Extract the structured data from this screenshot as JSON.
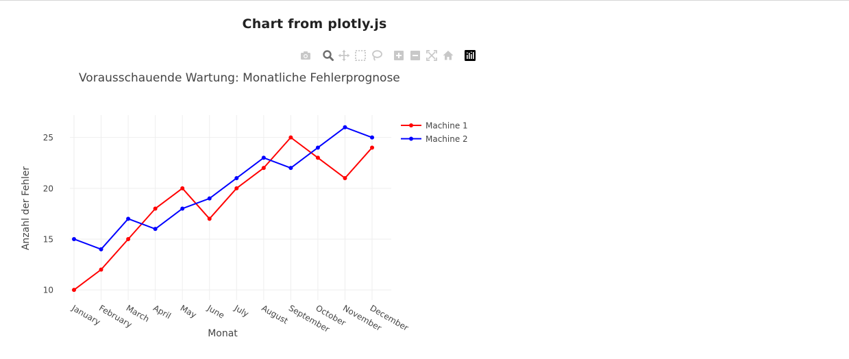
{
  "page": {
    "title": "Chart from plotly.js"
  },
  "modebar": {
    "buttons": [
      {
        "name": "camera-icon",
        "label": "Download plot as a png"
      },
      {
        "name": "zoom-icon",
        "label": "Zoom"
      },
      {
        "name": "pan-icon",
        "label": "Pan"
      },
      {
        "name": "box-select-icon",
        "label": "Box Select"
      },
      {
        "name": "lasso-select-icon",
        "label": "Lasso Select"
      },
      {
        "name": "zoom-in-icon",
        "label": "Zoom in"
      },
      {
        "name": "zoom-out-icon",
        "label": "Zoom out"
      },
      {
        "name": "autoscale-icon",
        "label": "Autoscale"
      },
      {
        "name": "reset-axes-icon",
        "label": "Reset axes"
      },
      {
        "name": "plotly-logo-icon",
        "label": "Produced with Plotly"
      }
    ],
    "active": "zoom-icon"
  },
  "chart_data": {
    "type": "line",
    "title": "Vorausschauende Wartung: Monatliche Fehlerprognose",
    "xlabel": "Monat",
    "ylabel": "Anzahl der Fehler",
    "categories": [
      "January",
      "February",
      "March",
      "April",
      "May",
      "June",
      "July",
      "August",
      "September",
      "October",
      "November",
      "December"
    ],
    "series": [
      {
        "name": "Machine 1",
        "color": "#ff0000",
        "values": [
          10,
          12,
          15,
          18,
          20,
          17,
          20,
          22,
          25,
          23,
          21,
          24
        ]
      },
      {
        "name": "Machine 2",
        "color": "#0000ff",
        "values": [
          15,
          14,
          17,
          16,
          18,
          19,
          21,
          23,
          22,
          24,
          26,
          25
        ]
      }
    ],
    "yticks": [
      10,
      15,
      20,
      25
    ],
    "ylim": [
      9.0,
      27.2
    ],
    "grid": true,
    "legend_position": "top-right",
    "tick_label_angle": 30
  }
}
